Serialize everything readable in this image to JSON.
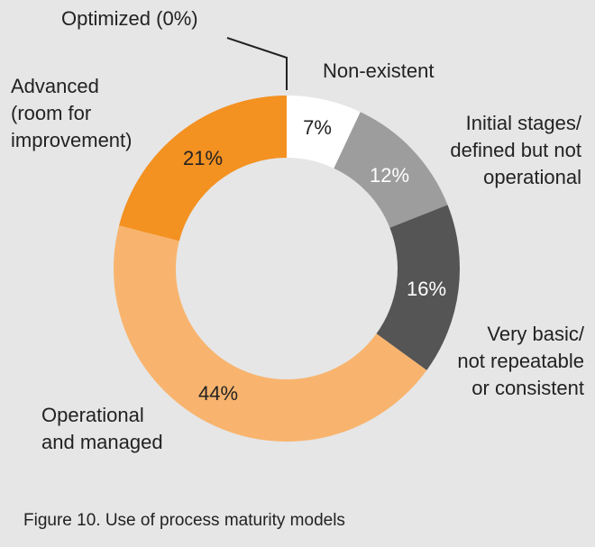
{
  "chart_data": {
    "type": "pie",
    "variant": "donut",
    "categories": [
      "Non-existent",
      "Initial stages/ defined but not operational",
      "Very basic/ not repeatable or consistent",
      "Operational and managed",
      "Advanced (room for improvement)",
      "Optimized (0%)"
    ],
    "category_lines": [
      [
        "Non-existent"
      ],
      [
        "Initial stages/",
        "defined but not",
        "operational"
      ],
      [
        "Very basic/",
        "not repeatable",
        "or consistent"
      ],
      [
        "Operational",
        "and managed"
      ],
      [
        "Advanced",
        "(room for",
        "improvement)"
      ],
      [
        "Optimized (0%)"
      ]
    ],
    "values": [
      7,
      12,
      16,
      44,
      21,
      0
    ],
    "value_labels": [
      "7%",
      "12%",
      "16%",
      "44%",
      "21%",
      ""
    ],
    "colors": [
      "#ffffff",
      "#9d9d9e",
      "#555555",
      "#f8b46e",
      "#f39121",
      "#ffffff"
    ],
    "value_label_dark": [
      true,
      false,
      false,
      true,
      true,
      true
    ],
    "background_color": "#e6e6e6"
  },
  "caption": "Figure 10.  Use of process maturity models"
}
